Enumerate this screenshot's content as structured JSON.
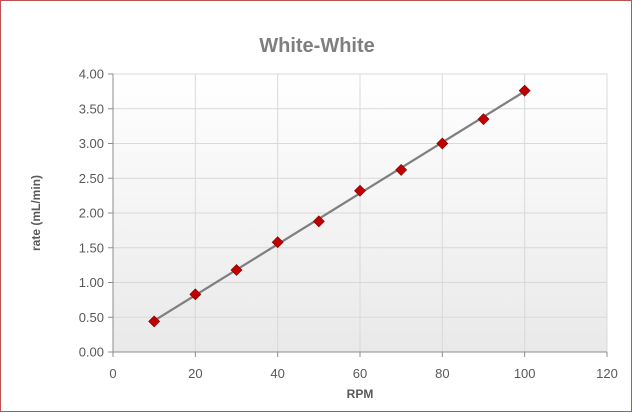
{
  "chart_data": {
    "type": "scatter",
    "title": "White-White",
    "xlabel": "RPM",
    "ylabel": "rate (mL/min)",
    "xlim": [
      0,
      120
    ],
    "ylim": [
      0,
      4
    ],
    "x_ticks": [
      "0",
      "20",
      "40",
      "60",
      "80",
      "100",
      "120"
    ],
    "y_ticks": [
      "0.00",
      "0.50",
      "1.00",
      "1.50",
      "2.00",
      "2.50",
      "3.00",
      "3.50",
      "4.00"
    ],
    "grid": true,
    "legend": "none",
    "marker_shape": "diamond",
    "marker_color": "#c00000",
    "trendline_color": "#7f7f7f",
    "plot_background": [
      "#ffffff",
      "#e9e9e9"
    ],
    "series": [
      {
        "x": [
          10,
          20,
          30,
          40,
          50,
          60,
          70,
          80,
          90,
          100
        ],
        "y": [
          0.44,
          0.83,
          1.18,
          1.58,
          1.88,
          2.32,
          2.62,
          3.0,
          3.35,
          3.76
        ]
      }
    ],
    "trendline": {
      "type": "linear",
      "x": [
        10,
        100
      ],
      "y": [
        0.45,
        3.75
      ]
    }
  }
}
